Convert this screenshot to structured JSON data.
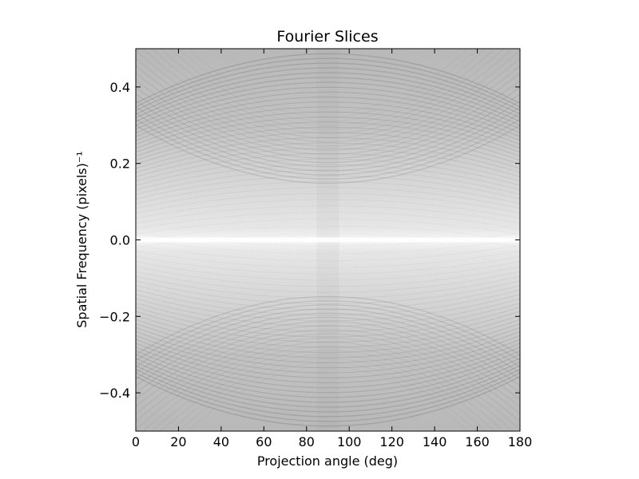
{
  "chart_data": {
    "type": "heatmap",
    "title": "Fourier Slices",
    "xlabel": "Projection angle (deg)",
    "ylabel": "Spatial Frequency (pixels)⁻¹",
    "xlim": [
      0,
      180
    ],
    "ylim": [
      -0.5,
      0.5
    ],
    "xticks": [
      0,
      20,
      40,
      60,
      80,
      100,
      120,
      140,
      160,
      180
    ],
    "xtick_labels": [
      "0",
      "20",
      "40",
      "60",
      "80",
      "100",
      "120",
      "140",
      "160",
      "180"
    ],
    "yticks": [
      0.4,
      0.2,
      0.0,
      -0.2,
      -0.4
    ],
    "ytick_labels": [
      "0.4",
      "0.2",
      "0.0",
      "−0.2",
      "−0.4"
    ],
    "colormap": "gray",
    "grid": false,
    "features": {
      "bright_band_at_frequency": 0.0,
      "symmetric_about_angle": 90
    }
  }
}
